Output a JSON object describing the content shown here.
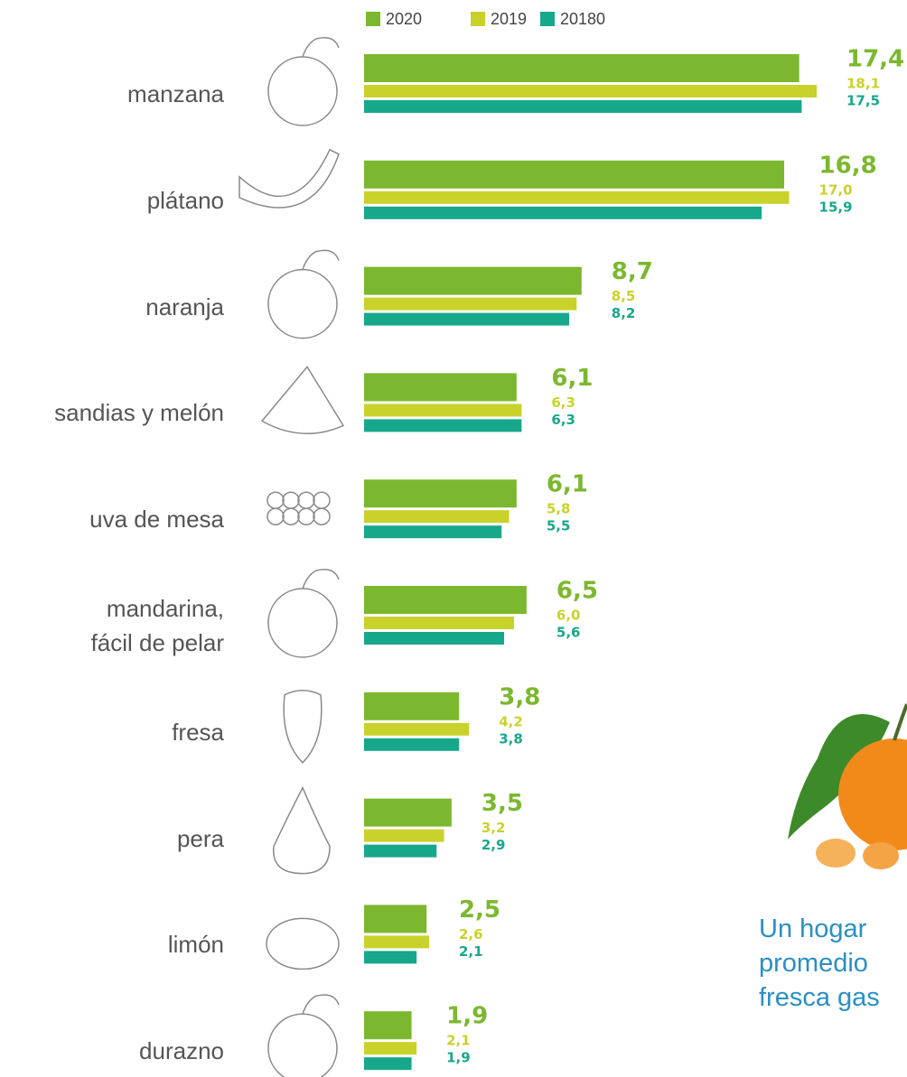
{
  "chart_data": {
    "type": "bar",
    "orientation": "horizontal",
    "categories": [
      "manzana",
      "plátano",
      "naranja",
      "sandias y melón",
      "uva de mesa",
      "mandarina,\nfácil de pelar",
      "fresa",
      "pera",
      "limón",
      "durazno"
    ],
    "series": [
      {
        "name": "2020",
        "color": "#7cb82f",
        "values": [
          17.4,
          16.8,
          8.7,
          6.1,
          6.1,
          6.5,
          3.8,
          3.5,
          2.5,
          1.9
        ],
        "value_labels": [
          "17,4",
          "16,8",
          "8,7",
          "6,1",
          "6,1",
          "6,5",
          "3,8",
          "3,5",
          "2,5",
          "1,9"
        ]
      },
      {
        "name": "2019",
        "color": "#c9d22b",
        "values": [
          18.1,
          17.0,
          8.5,
          6.3,
          5.8,
          6.0,
          4.2,
          3.2,
          2.6,
          2.1
        ],
        "value_labels": [
          "18,1",
          "17,0",
          "8,5",
          "6,3",
          "5,8",
          "6,0",
          "4,2",
          "3,2",
          "2,6",
          "2,1"
        ]
      },
      {
        "name": "20180",
        "color": "#17a78b",
        "values": [
          17.5,
          15.9,
          8.2,
          6.3,
          5.5,
          5.6,
          3.8,
          2.9,
          2.1,
          1.9
        ],
        "value_labels": [
          "17,5",
          "15,9",
          "8,2",
          "6,3",
          "5,5",
          "5,6",
          "3,8",
          "2,9",
          "2,1",
          "1,9"
        ]
      }
    ],
    "annotation": "Un hogar\npromedio\nfresca gas"
  }
}
